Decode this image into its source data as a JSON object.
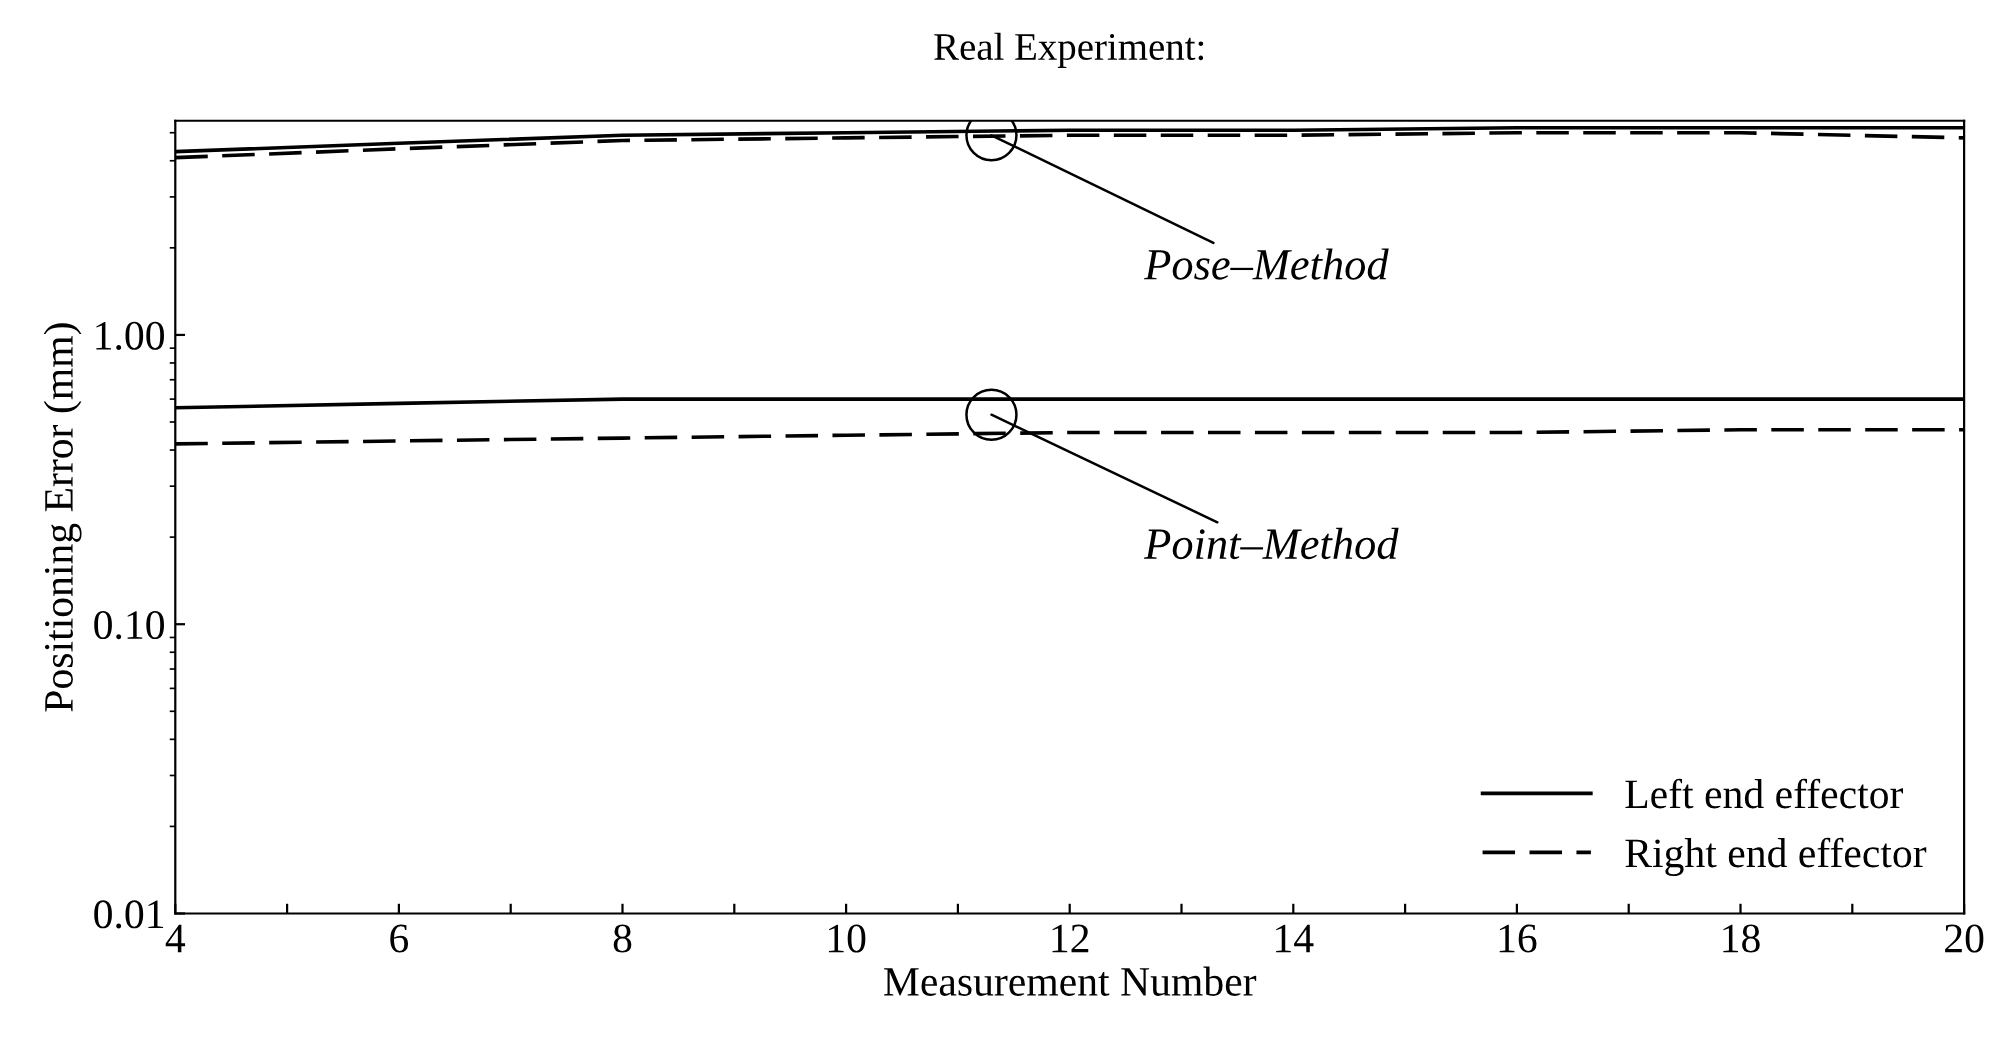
{
  "chart_data": {
    "type": "line",
    "title": "Real Experiment:",
    "xlabel": "Measurement Number",
    "ylabel": "Positioning Error (mm)",
    "log": "y",
    "xlim": [
      4,
      20
    ],
    "ylim": [
      0.01,
      5.5
    ],
    "xticks": [
      4,
      {
        "value": 5,
        "label": null
      },
      6,
      {
        "value": 7,
        "label": null
      },
      8,
      {
        "value": 9,
        "label": null
      },
      10,
      {
        "value": 11,
        "label": null
      },
      12,
      {
        "value": 13,
        "label": null
      },
      14,
      {
        "value": 15,
        "label": null
      },
      16,
      {
        "value": 17,
        "label": null
      },
      18,
      {
        "value": 19,
        "label": null
      },
      20
    ],
    "yticks": [
      {
        "value": 0.01,
        "label": "0.01"
      },
      {
        "value": 0.1,
        "label": "0.10"
      },
      {
        "value": 1,
        "label": "1.00"
      }
    ],
    "grid": false,
    "legend": "bottom right",
    "marker": "none",
    "x": [
      4,
      6,
      8,
      10,
      12,
      14,
      16,
      18,
      20
    ],
    "series": [
      {
        "name": "Left end effector",
        "color": "#000000",
        "line_style": "solid",
        "values": [
          4.3,
          4.6,
          4.9,
          5.0,
          5.1,
          5.1,
          5.2,
          5.2,
          5.2
        ]
      },
      {
        "name": "Right end effector",
        "color": "#000000",
        "line_style": "dashed",
        "values": [
          4.1,
          4.4,
          4.7,
          4.8,
          4.9,
          4.9,
          5.0,
          5.0,
          4.8
        ]
      },
      {
        "color": "#000000",
        "line_style": "solid",
        "values": [
          0.56,
          0.58,
          0.6,
          0.6,
          0.6,
          0.6,
          0.6,
          0.6,
          0.6
        ]
      },
      {
        "color": "#000000",
        "line_style": "dashed",
        "values": [
          0.42,
          0.43,
          0.44,
          0.45,
          0.46,
          0.46,
          0.46,
          0.47,
          0.47
        ]
      }
    ],
    "annotations": [
      {
        "text": "Pose–Method",
        "x": 11.3,
        "y": 4.9
      },
      {
        "text": "Point–Method",
        "x": 11.3,
        "y": 0.53
      }
    ]
  }
}
